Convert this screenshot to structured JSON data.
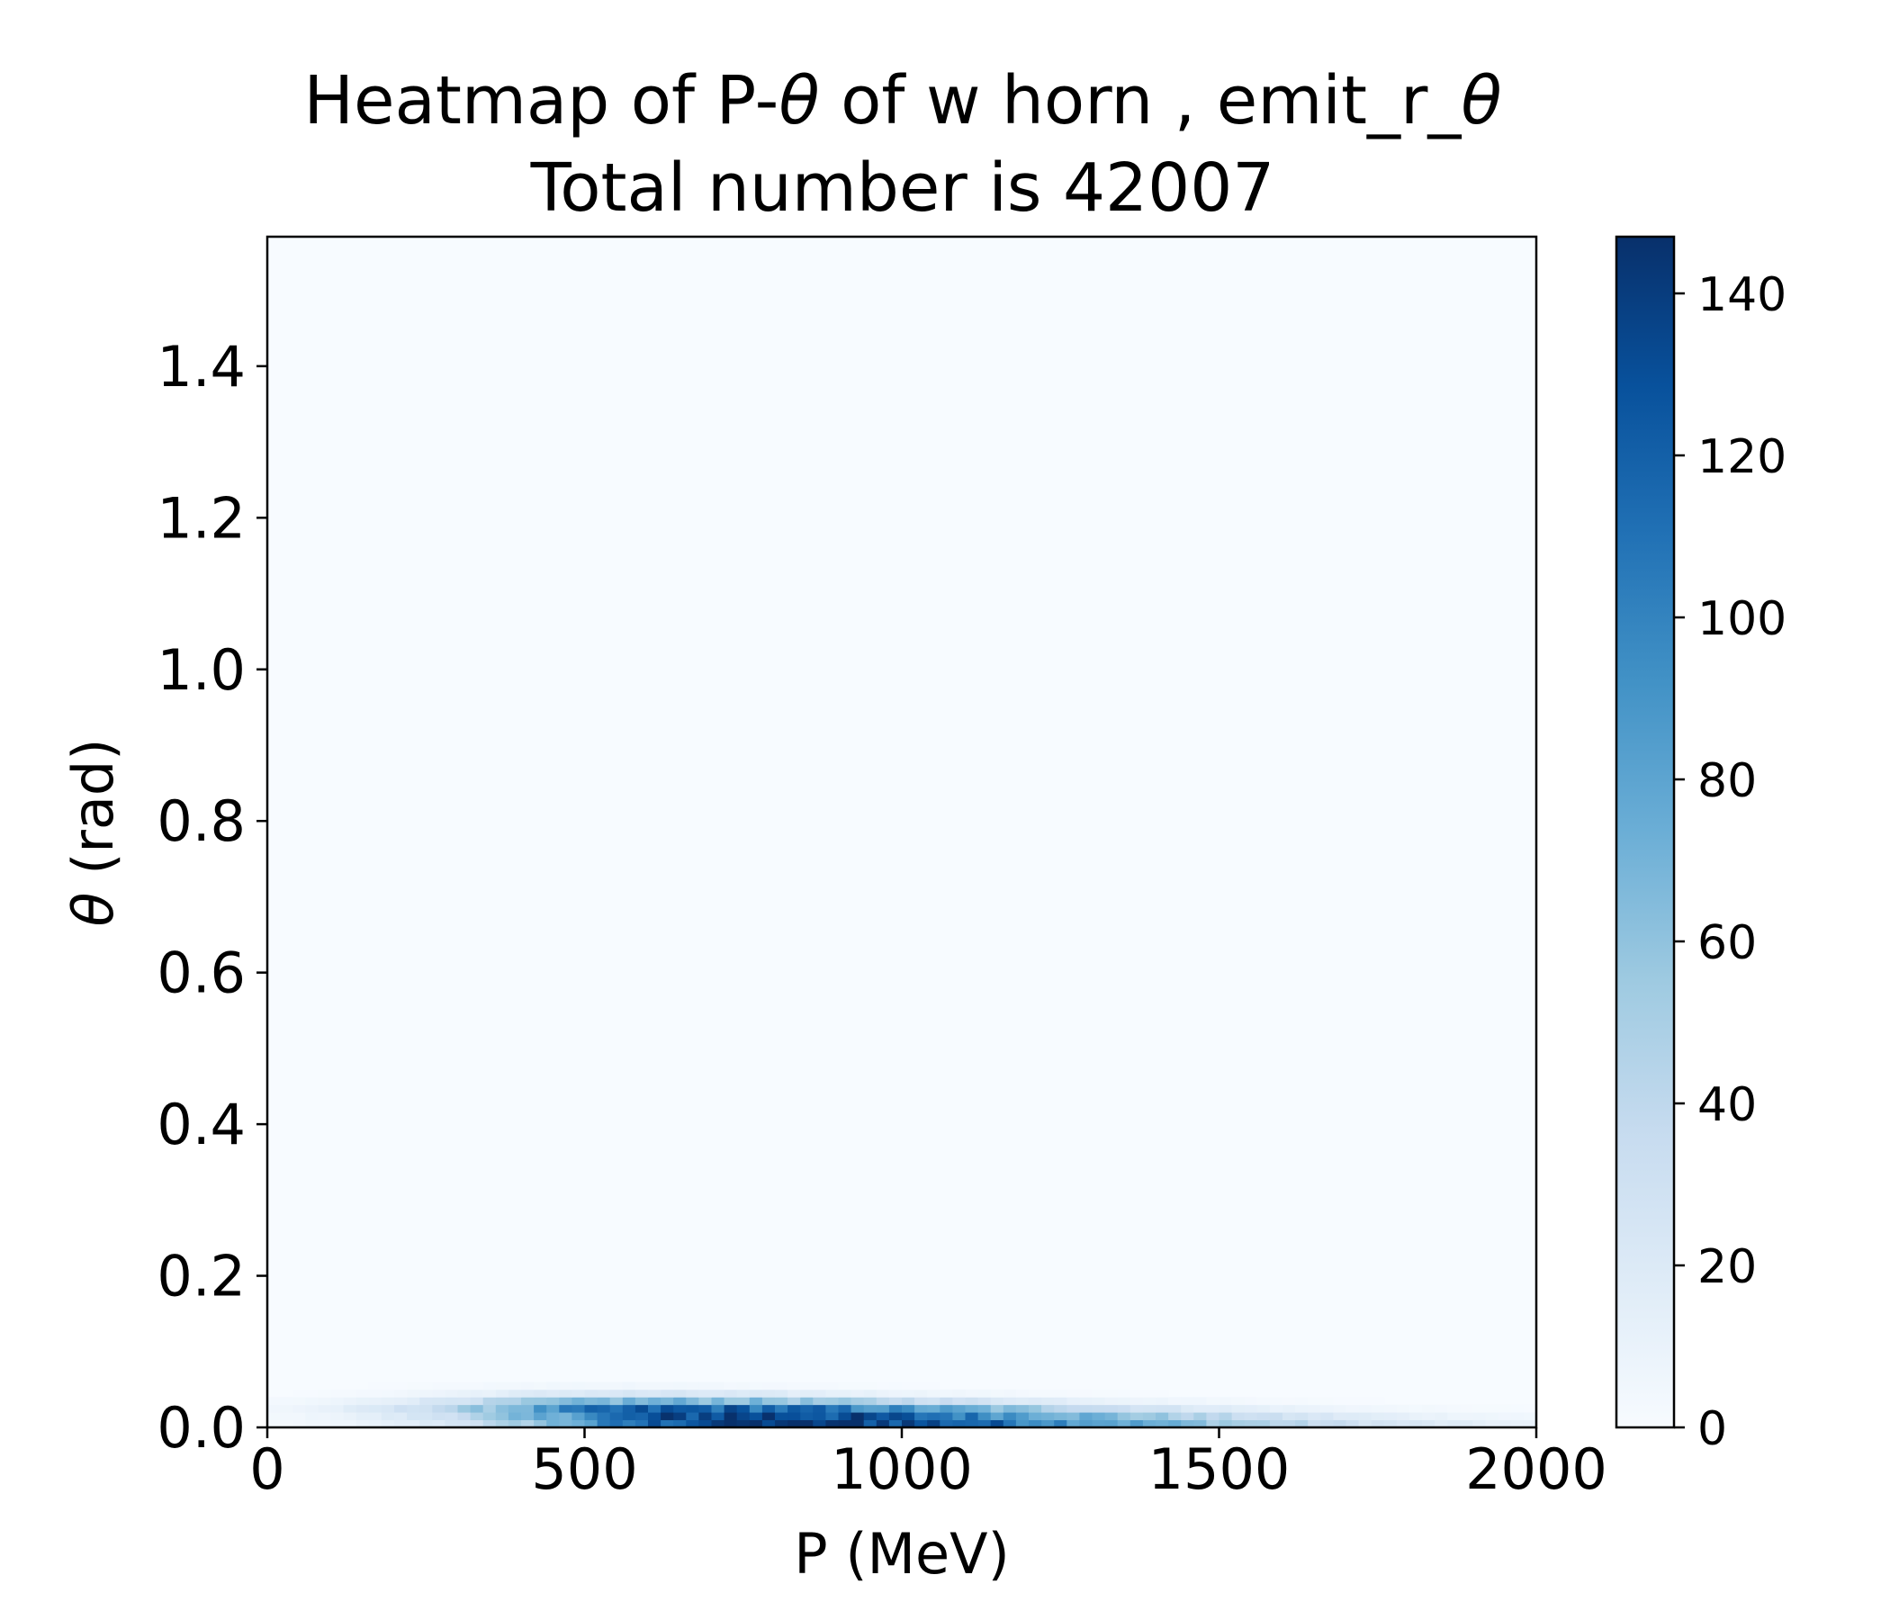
{
  "chart_data": {
    "type": "heatmap",
    "title_line1": {
      "before": "Heatmap of P-",
      "theta1": "θ",
      "middle": " of w horn , emit_r_",
      "theta2": "θ"
    },
    "title_line2": "Total number is 42007",
    "xlabel": "P (MeV)",
    "ylabel": {
      "symbol": "θ",
      "unit": " (rad)"
    },
    "xlim": [
      0,
      2000
    ],
    "ylim": [
      0,
      1.5708
    ],
    "xticks": [
      0,
      500,
      1000,
      1500,
      2000
    ],
    "xtick_labels": [
      "0",
      "500",
      "1000",
      "1500",
      "2000"
    ],
    "yticks": [
      0,
      0.2,
      0.4,
      0.6,
      0.8,
      1.0,
      1.2,
      1.4
    ],
    "ytick_labels": [
      "0.0",
      "0.2",
      "0.4",
      "0.6",
      "0.8",
      "1.0",
      "1.2",
      "1.4"
    ],
    "colormap": "Blues",
    "colorbar": {
      "vmin": 0,
      "vmax": 147,
      "ticks": [
        0,
        20,
        40,
        60,
        80,
        100,
        120,
        140
      ],
      "tick_labels": [
        "0",
        "20",
        "40",
        "60",
        "80",
        "100",
        "120",
        "140"
      ]
    },
    "bins": {
      "x_count": 100,
      "x_width": 20,
      "y_width": 0.01
    },
    "density_rows": [
      {
        "y_range": [
          0.0,
          0.01
        ],
        "p_peak": 780,
        "p_sigma_low": 260,
        "p_sigma_high": 520,
        "peak": 147
      },
      {
        "y_range": [
          0.01,
          0.02
        ],
        "p_peak": 740,
        "p_sigma_low": 270,
        "p_sigma_high": 480,
        "peak": 138
      },
      {
        "y_range": [
          0.02,
          0.03
        ],
        "p_peak": 660,
        "p_sigma_low": 260,
        "p_sigma_high": 430,
        "peak": 120
      },
      {
        "y_range": [
          0.03,
          0.04
        ],
        "p_peak": 600,
        "p_sigma_low": 230,
        "p_sigma_high": 380,
        "peak": 68
      },
      {
        "y_range": [
          0.04,
          0.05
        ],
        "p_peak": 560,
        "p_sigma_low": 200,
        "p_sigma_high": 320,
        "peak": 22
      },
      {
        "y_range": [
          0.05,
          0.06
        ],
        "p_peak": 520,
        "p_sigma_low": 170,
        "p_sigma_high": 260,
        "peak": 5
      }
    ],
    "grid": false,
    "legend": "none"
  },
  "colors": {
    "background": "#ffffff",
    "axes": "#000000",
    "colormap_stops": [
      "#f7fbff",
      "#deebf7",
      "#c6dbef",
      "#9ecae1",
      "#6baed6",
      "#4292c6",
      "#2171b5",
      "#08519c",
      "#08306b"
    ]
  }
}
